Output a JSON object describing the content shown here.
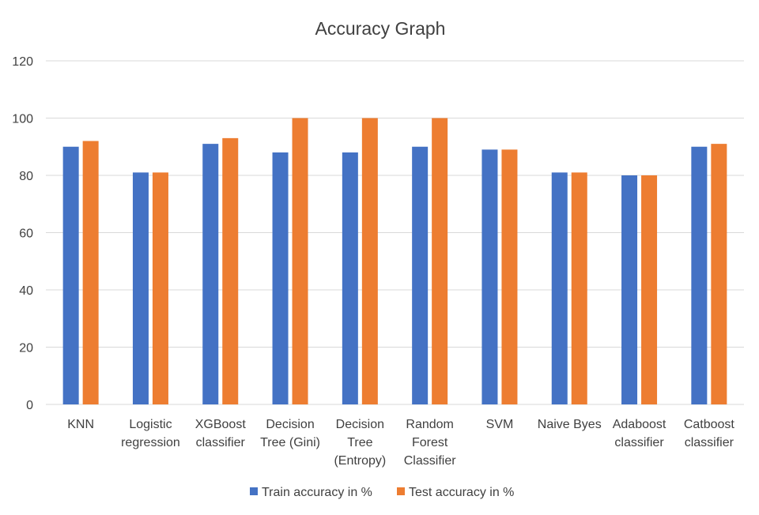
{
  "chart_data": {
    "type": "bar",
    "title": "Accuracy Graph",
    "xlabel": "",
    "ylabel": "",
    "ylim": [
      0,
      120
    ],
    "yticks": [
      "0",
      "20",
      "40",
      "60",
      "80",
      "100",
      "120"
    ],
    "grid": true,
    "legend_position": "bottom",
    "categories": [
      [
        "KNN"
      ],
      [
        "Logistic",
        "regression"
      ],
      [
        "XGBoost",
        "classifier"
      ],
      [
        "Decision",
        "Tree (Gini)"
      ],
      [
        "Decision",
        "Tree",
        "(Entropy)"
      ],
      [
        "Random",
        "Forest",
        "Classifier"
      ],
      [
        "SVM"
      ],
      [
        "Naive Byes"
      ],
      [
        "Adaboost",
        "classifier"
      ],
      [
        "Catboost",
        "classifier"
      ]
    ],
    "series": [
      {
        "name": "Train accuracy in %",
        "color": "#4472c4",
        "values": [
          90,
          81,
          91,
          88,
          88,
          90,
          89,
          81,
          80,
          90
        ]
      },
      {
        "name": "Test accuracy in %",
        "color": "#ed7d31",
        "values": [
          92,
          81,
          93,
          100,
          100,
          100,
          89,
          81,
          80,
          91
        ]
      }
    ]
  }
}
